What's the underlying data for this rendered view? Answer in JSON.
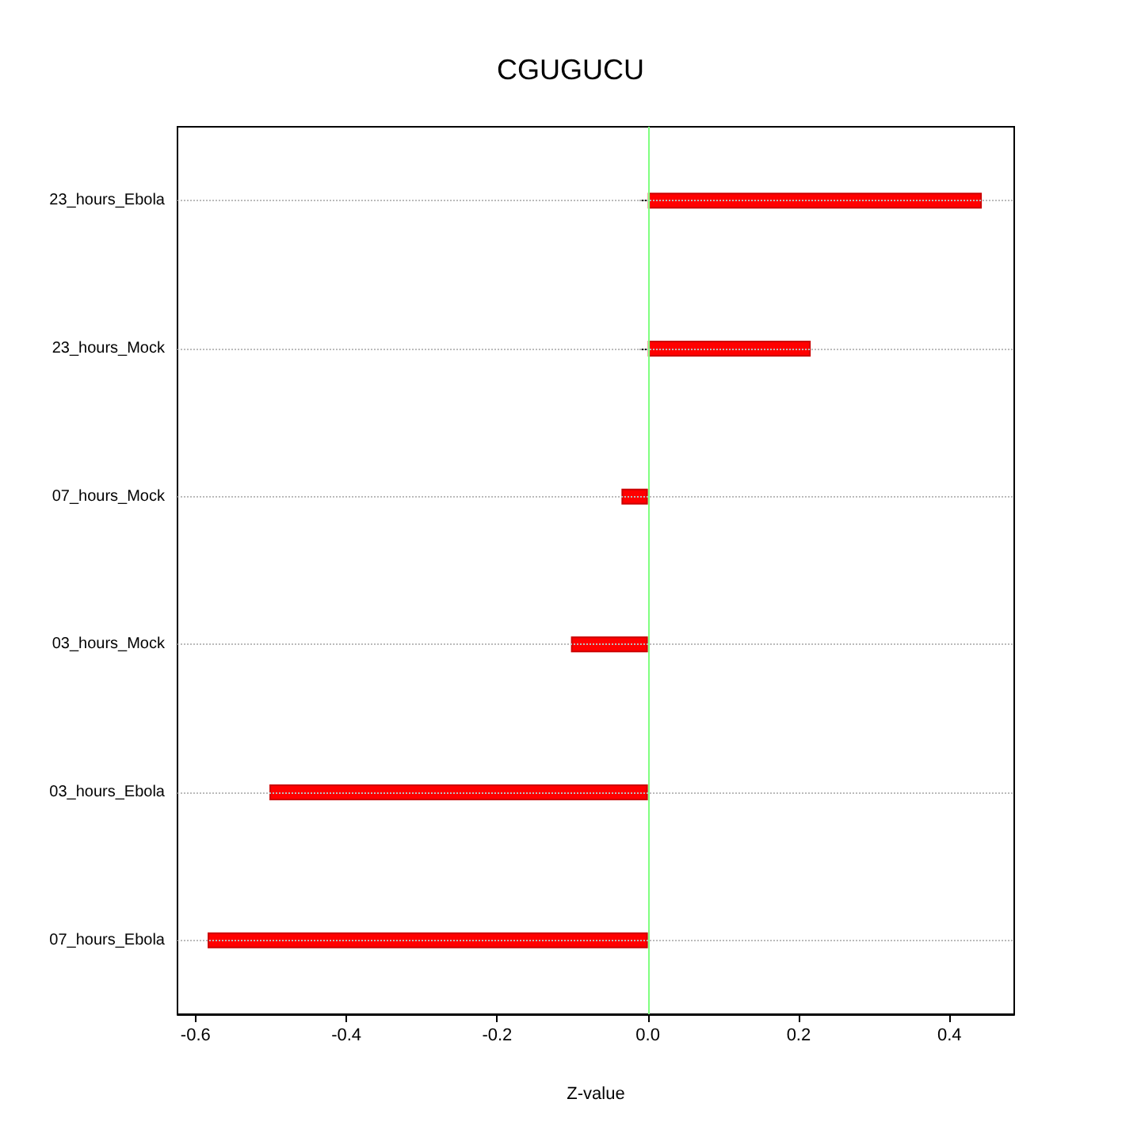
{
  "chart_data": {
    "type": "bar",
    "orientation": "horizontal",
    "title": "CGUGUCU",
    "xlabel": "Z-value",
    "categories": [
      "23_hours_Ebola",
      "23_hours_Mock",
      "07_hours_Mock",
      "03_hours_Mock",
      "03_hours_Ebola",
      "07_hours_Ebola"
    ],
    "values": [
      0.443,
      0.216,
      -0.035,
      -0.102,
      -0.502,
      -0.584
    ],
    "color": "#ff0000",
    "xlim": [
      -0.624,
      0.486
    ],
    "xticks": [
      -0.6,
      -0.4,
      -0.2,
      {
        "value": 0,
        "label": "0.0"
      },
      0.2,
      0.4
    ],
    "ref_lines": [
      {
        "axis": "x",
        "value": 0,
        "color": "#80ff80"
      }
    ],
    "grid": "y"
  }
}
